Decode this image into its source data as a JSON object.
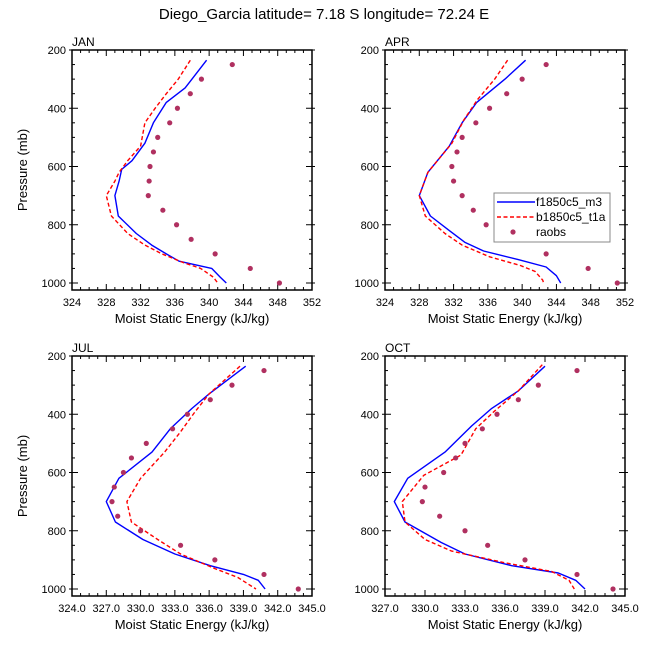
{
  "figure": {
    "title": "Diego_Garcia  latitude= 7.18 S longitude= 72.24 E"
  },
  "legend": {
    "entries": [
      {
        "label": "f1850c5_m3",
        "style": "solid",
        "color": "#0000ff"
      },
      {
        "label": "b1850c5_t1a",
        "style": "dashed",
        "color": "#ff0000"
      },
      {
        "label": "raobs",
        "style": "marker",
        "color": "#b03060"
      }
    ],
    "panel": "APR",
    "placement": "right-middle"
  },
  "chart_data": [
    {
      "type": "line",
      "title": "JAN",
      "xlabel": "Moist Static Energy (kJ/kg)",
      "ylabel": "Pressure (mb)",
      "xlim": [
        324,
        352
      ],
      "ylim": [
        1000,
        200
      ],
      "y_inverted": true,
      "xticks": [
        324,
        328,
        332,
        336,
        340,
        344,
        348,
        352
      ],
      "xtick_labels": [
        "324",
        "328",
        "332",
        "336",
        "340",
        "344",
        "348",
        "352"
      ],
      "yticks": [
        200,
        400,
        600,
        800,
        1000
      ],
      "ytick_labels": [
        "200",
        "400",
        "600",
        "800",
        "1000"
      ],
      "show_ylabel": true,
      "series": [
        {
          "name": "f1850c5_m3",
          "style": "solid",
          "color": "#0000ff",
          "p": [
            235,
            300,
            330,
            380,
            450,
            520,
            580,
            610,
            650,
            700,
            770,
            830,
            870,
            900,
            925,
            950,
            980,
            1000
          ],
          "x": [
            339.7,
            338.0,
            337.2,
            335.0,
            333.5,
            332.5,
            331.0,
            329.8,
            329.5,
            329.0,
            329.4,
            331.5,
            333.3,
            335.0,
            336.5,
            340.3,
            341.3,
            342.0
          ]
        },
        {
          "name": "b1850c5_t1a",
          "style": "dashed",
          "color": "#ff0000",
          "p": [
            235,
            300,
            350,
            400,
            450,
            530,
            580,
            620,
            650,
            700,
            770,
            830,
            870,
            900,
            930,
            950,
            980,
            1000
          ],
          "x": [
            337.8,
            336.4,
            335.0,
            333.7,
            332.5,
            332.0,
            330.5,
            329.5,
            329.0,
            328.0,
            328.6,
            330.5,
            332.5,
            334.5,
            337.0,
            339.0,
            340.5,
            341.0
          ]
        },
        {
          "name": "raobs",
          "style": "marker",
          "color": "#b03060",
          "p": [
            250,
            300,
            350,
            400,
            450,
            500,
            550,
            600,
            650,
            700,
            750,
            800,
            850,
            900,
            950,
            1000
          ],
          "x": [
            342.7,
            339.1,
            337.8,
            336.3,
            335.4,
            334.0,
            333.5,
            333.1,
            333.0,
            332.9,
            334.6,
            336.2,
            337.9,
            340.7,
            344.8,
            348.2
          ]
        }
      ]
    },
    {
      "type": "line",
      "title": "APR",
      "xlabel": "Moist Static Energy (kJ/kg)",
      "ylabel": "",
      "xlim": [
        324,
        352
      ],
      "ylim": [
        1000,
        200
      ],
      "y_inverted": true,
      "xticks": [
        324,
        328,
        332,
        336,
        340,
        344,
        348,
        352
      ],
      "xtick_labels": [
        "324",
        "328",
        "332",
        "336",
        "340",
        "344",
        "348",
        "352"
      ],
      "yticks": [
        200,
        400,
        600,
        800,
        1000
      ],
      "ytick_labels": [
        "200",
        "400",
        "600",
        "800",
        "1000"
      ],
      "show_ylabel": false,
      "series": [
        {
          "name": "f1850c5_m3",
          "style": "solid",
          "color": "#0000ff",
          "p": [
            235,
            300,
            380,
            450,
            530,
            620,
            700,
            770,
            820,
            860,
            890,
            920,
            945,
            975,
            1000
          ],
          "x": [
            340.4,
            338.0,
            334.7,
            333.0,
            331.5,
            329.0,
            328.0,
            329.3,
            331.5,
            333.3,
            335.5,
            339.6,
            342.8,
            344.0,
            344.5
          ]
        },
        {
          "name": "b1850c5_t1a",
          "style": "dashed",
          "color": "#ff0000",
          "p": [
            235,
            300,
            370,
            440,
            520,
            620,
            700,
            770,
            830,
            870,
            910,
            940,
            960,
            990,
            1000
          ],
          "x": [
            338.3,
            336.8,
            334.8,
            333.2,
            331.8,
            329.0,
            328.0,
            328.7,
            331.0,
            333.0,
            336.2,
            339.8,
            341.5,
            342.4,
            342.5
          ]
        },
        {
          "name": "raobs",
          "style": "marker",
          "color": "#b03060",
          "p": [
            250,
            300,
            350,
            400,
            450,
            500,
            550,
            600,
            650,
            700,
            750,
            800,
            850,
            900,
            950,
            1000
          ],
          "x": [
            342.8,
            340.0,
            338.2,
            336.2,
            334.6,
            333.0,
            332.4,
            331.8,
            332.0,
            333.0,
            334.3,
            335.8,
            339.0,
            342.8,
            347.7,
            351.1
          ]
        }
      ]
    },
    {
      "type": "line",
      "title": "JUL",
      "xlabel": "Moist Static Energy (kJ/kg)",
      "ylabel": "Pressure (mb)",
      "xlim": [
        324,
        345
      ],
      "ylim": [
        1000,
        200
      ],
      "y_inverted": true,
      "xticks": [
        324,
        327,
        330,
        333,
        336,
        339,
        342,
        345
      ],
      "xtick_labels": [
        "324.0",
        "327.0",
        "330.0",
        "333.0",
        "336.0",
        "339.0",
        "342.0",
        "345.0"
      ],
      "yticks": [
        200,
        400,
        600,
        800,
        1000
      ],
      "ytick_labels": [
        "200",
        "400",
        "600",
        "800",
        "1000"
      ],
      "show_ylabel": true,
      "series": [
        {
          "name": "f1850c5_m3",
          "style": "solid",
          "color": "#0000ff",
          "p": [
            235,
            330,
            380,
            450,
            530,
            620,
            700,
            770,
            830,
            880,
            920,
            950,
            970,
            1000
          ],
          "x": [
            339.2,
            336.0,
            334.5,
            332.6,
            331.0,
            328.1,
            327.0,
            327.8,
            330.2,
            333.0,
            336.1,
            339.0,
            340.3,
            340.9
          ]
        },
        {
          "name": "b1850c5_t1a",
          "style": "dashed",
          "color": "#ff0000",
          "p": [
            235,
            330,
            390,
            460,
            530,
            620,
            700,
            770,
            830,
            880,
            930,
            960,
            990,
            1000
          ],
          "x": [
            338.7,
            336.0,
            334.8,
            333.5,
            332.1,
            330.0,
            328.8,
            329.2,
            331.5,
            333.5,
            336.5,
            338.5,
            339.7,
            340.1
          ]
        },
        {
          "name": "raobs",
          "style": "marker",
          "color": "#b03060",
          "p": [
            250,
            300,
            350,
            400,
            450,
            500,
            550,
            600,
            650,
            700,
            750,
            800,
            850,
            900,
            950,
            1000
          ],
          "x": [
            340.8,
            338.0,
            336.1,
            334.1,
            332.8,
            330.5,
            329.2,
            328.5,
            327.7,
            327.5,
            328.0,
            330.0,
            333.5,
            336.5,
            340.8,
            343.8
          ]
        }
      ]
    },
    {
      "type": "line",
      "title": "OCT",
      "xlabel": "Moist Static Energy (kJ/kg)",
      "ylabel": "",
      "xlim": [
        327,
        345
      ],
      "ylim": [
        1000,
        200
      ],
      "y_inverted": true,
      "xticks": [
        327,
        330,
        333,
        336,
        339,
        342,
        345
      ],
      "xtick_labels": [
        "327.0",
        "330.0",
        "333.0",
        "336.0",
        "339.0",
        "342.0",
        "345.0"
      ],
      "yticks": [
        200,
        400,
        600,
        800,
        1000
      ],
      "ytick_labels": [
        "200",
        "400",
        "600",
        "800",
        "1000"
      ],
      "show_ylabel": false,
      "series": [
        {
          "name": "f1850c5_m3",
          "style": "solid",
          "color": "#0000ff",
          "p": [
            235,
            320,
            380,
            440,
            530,
            620,
            700,
            770,
            840,
            880,
            920,
            945,
            970,
            1000
          ],
          "x": [
            339.0,
            337.0,
            335.0,
            333.5,
            331.5,
            328.7,
            327.7,
            328.5,
            331.2,
            333.0,
            336.5,
            340.0,
            341.3,
            342.0
          ]
        },
        {
          "name": "b1850c5_t1a",
          "style": "dashed",
          "color": "#ff0000",
          "p": [
            230,
            320,
            390,
            450,
            540,
            610,
            700,
            770,
            830,
            870,
            910,
            940,
            970,
            1000
          ],
          "x": [
            338.8,
            337.0,
            335.2,
            333.8,
            332.7,
            329.9,
            328.3,
            328.5,
            330.0,
            332.0,
            336.0,
            339.5,
            340.8,
            341.2
          ]
        },
        {
          "name": "raobs",
          "style": "marker",
          "color": "#b03060",
          "p": [
            250,
            300,
            350,
            400,
            450,
            500,
            550,
            600,
            650,
            700,
            750,
            800,
            850,
            900,
            950,
            1000
          ],
          "x": [
            341.4,
            338.5,
            337.0,
            335.4,
            334.3,
            333.0,
            332.3,
            331.4,
            330.0,
            329.8,
            331.1,
            333.0,
            334.7,
            337.5,
            341.4,
            344.1
          ]
        }
      ]
    }
  ]
}
